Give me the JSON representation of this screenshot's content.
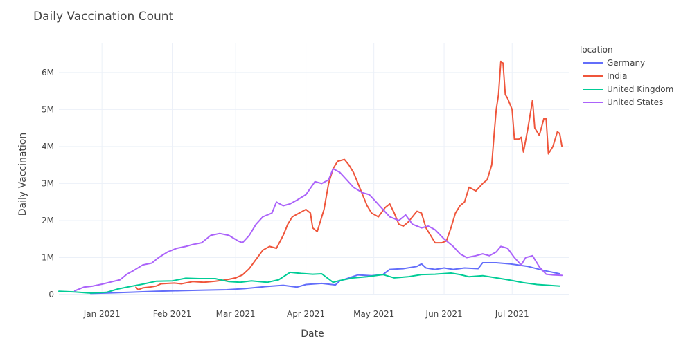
{
  "chart_data": {
    "type": "line",
    "title": "Daily Vaccination Count",
    "xlabel": "Date",
    "ylabel": "Daily Vaccination",
    "legend_title": "location",
    "legend_position": "top-right",
    "grid": true,
    "x_type": "date",
    "xlim": [
      "2020-12-13",
      "2021-07-26"
    ],
    "ylim": [
      0,
      6800000
    ],
    "x_ticks": [
      {
        "date": "2021-01-01",
        "label": "Jan 2021"
      },
      {
        "date": "2021-02-01",
        "label": "Feb 2021"
      },
      {
        "date": "2021-03-01",
        "label": "Mar 2021"
      },
      {
        "date": "2021-04-01",
        "label": "Apr 2021"
      },
      {
        "date": "2021-05-01",
        "label": "May 2021"
      },
      {
        "date": "2021-06-01",
        "label": "Jun 2021"
      },
      {
        "date": "2021-07-01",
        "label": "Jul 2021"
      }
    ],
    "y_ticks": [
      {
        "value": 0,
        "label": "0"
      },
      {
        "value": 1000000,
        "label": "1M"
      },
      {
        "value": 2000000,
        "label": "2M"
      },
      {
        "value": 3000000,
        "label": "3M"
      },
      {
        "value": 4000000,
        "label": "4M"
      },
      {
        "value": 5000000,
        "label": "5M"
      },
      {
        "value": 6000000,
        "label": "6M"
      }
    ],
    "series": [
      {
        "name": "Germany",
        "color": "#636efa",
        "points": [
          [
            "2020-12-27",
            30000
          ],
          [
            "2021-01-05",
            45000
          ],
          [
            "2021-01-15",
            65000
          ],
          [
            "2021-01-25",
            90000
          ],
          [
            "2021-02-05",
            105000
          ],
          [
            "2021-02-15",
            120000
          ],
          [
            "2021-02-25",
            130000
          ],
          [
            "2021-03-05",
            160000
          ],
          [
            "2021-03-15",
            220000
          ],
          [
            "2021-03-22",
            250000
          ],
          [
            "2021-03-28",
            200000
          ],
          [
            "2021-04-01",
            270000
          ],
          [
            "2021-04-08",
            300000
          ],
          [
            "2021-04-14",
            260000
          ],
          [
            "2021-04-16",
            370000
          ],
          [
            "2021-04-20",
            450000
          ],
          [
            "2021-04-24",
            530000
          ],
          [
            "2021-04-30",
            510000
          ],
          [
            "2021-05-05",
            540000
          ],
          [
            "2021-05-08",
            680000
          ],
          [
            "2021-05-14",
            700000
          ],
          [
            "2021-05-20",
            760000
          ],
          [
            "2021-05-22",
            830000
          ],
          [
            "2021-05-24",
            720000
          ],
          [
            "2021-05-28",
            680000
          ],
          [
            "2021-06-01",
            720000
          ],
          [
            "2021-06-05",
            680000
          ],
          [
            "2021-06-10",
            720000
          ],
          [
            "2021-06-16",
            700000
          ],
          [
            "2021-06-18",
            860000
          ],
          [
            "2021-06-24",
            860000
          ],
          [
            "2021-06-30",
            830000
          ],
          [
            "2021-07-08",
            760000
          ],
          [
            "2021-07-15",
            650000
          ],
          [
            "2021-07-22",
            560000
          ]
        ]
      },
      {
        "name": "India",
        "color": "#EF553B",
        "points": [
          [
            "2021-01-16",
            200000
          ],
          [
            "2021-01-17",
            130000
          ],
          [
            "2021-01-19",
            180000
          ],
          [
            "2021-01-22",
            200000
          ],
          [
            "2021-01-25",
            230000
          ],
          [
            "2021-01-27",
            290000
          ],
          [
            "2021-01-30",
            300000
          ],
          [
            "2021-02-02",
            310000
          ],
          [
            "2021-02-05",
            290000
          ],
          [
            "2021-02-10",
            350000
          ],
          [
            "2021-02-15",
            330000
          ],
          [
            "2021-02-20",
            360000
          ],
          [
            "2021-02-25",
            400000
          ],
          [
            "2021-03-01",
            450000
          ],
          [
            "2021-03-04",
            530000
          ],
          [
            "2021-03-07",
            700000
          ],
          [
            "2021-03-10",
            950000
          ],
          [
            "2021-03-13",
            1200000
          ],
          [
            "2021-03-16",
            1300000
          ],
          [
            "2021-03-19",
            1250000
          ],
          [
            "2021-03-22",
            1600000
          ],
          [
            "2021-03-24",
            1900000
          ],
          [
            "2021-03-26",
            2100000
          ],
          [
            "2021-03-29",
            2200000
          ],
          [
            "2021-04-01",
            2300000
          ],
          [
            "2021-04-03",
            2200000
          ],
          [
            "2021-04-04",
            1800000
          ],
          [
            "2021-04-06",
            1700000
          ],
          [
            "2021-04-09",
            2300000
          ],
          [
            "2021-04-11",
            3000000
          ],
          [
            "2021-04-13",
            3400000
          ],
          [
            "2021-04-15",
            3600000
          ],
          [
            "2021-04-18",
            3650000
          ],
          [
            "2021-04-20",
            3500000
          ],
          [
            "2021-04-22",
            3300000
          ],
          [
            "2021-04-24",
            3000000
          ],
          [
            "2021-04-26",
            2700000
          ],
          [
            "2021-04-28",
            2400000
          ],
          [
            "2021-04-30",
            2200000
          ],
          [
            "2021-05-03",
            2100000
          ],
          [
            "2021-05-06",
            2350000
          ],
          [
            "2021-05-08",
            2450000
          ],
          [
            "2021-05-10",
            2200000
          ],
          [
            "2021-05-12",
            1900000
          ],
          [
            "2021-05-14",
            1850000
          ],
          [
            "2021-05-16",
            1950000
          ],
          [
            "2021-05-18",
            2100000
          ],
          [
            "2021-05-20",
            2250000
          ],
          [
            "2021-05-22",
            2200000
          ],
          [
            "2021-05-24",
            1800000
          ],
          [
            "2021-05-26",
            1600000
          ],
          [
            "2021-05-28",
            1400000
          ],
          [
            "2021-05-31",
            1400000
          ],
          [
            "2021-06-02",
            1450000
          ],
          [
            "2021-06-04",
            1800000
          ],
          [
            "2021-06-06",
            2200000
          ],
          [
            "2021-06-08",
            2400000
          ],
          [
            "2021-06-10",
            2500000
          ],
          [
            "2021-06-12",
            2900000
          ],
          [
            "2021-06-15",
            2800000
          ],
          [
            "2021-06-18",
            3000000
          ],
          [
            "2021-06-20",
            3100000
          ],
          [
            "2021-06-22",
            3500000
          ],
          [
            "2021-06-23",
            4300000
          ],
          [
            "2021-06-24",
            5000000
          ],
          [
            "2021-06-25",
            5400000
          ],
          [
            "2021-06-26",
            6300000
          ],
          [
            "2021-06-27",
            6250000
          ],
          [
            "2021-06-28",
            5400000
          ],
          [
            "2021-06-29",
            5300000
          ],
          [
            "2021-07-01",
            5000000
          ],
          [
            "2021-07-02",
            4200000
          ],
          [
            "2021-07-04",
            4200000
          ],
          [
            "2021-07-05",
            4250000
          ],
          [
            "2021-07-06",
            3850000
          ],
          [
            "2021-07-08",
            4500000
          ],
          [
            "2021-07-10",
            5250000
          ],
          [
            "2021-07-11",
            4500000
          ],
          [
            "2021-07-13",
            4300000
          ],
          [
            "2021-07-15",
            4750000
          ],
          [
            "2021-07-16",
            4750000
          ],
          [
            "2021-07-17",
            3800000
          ],
          [
            "2021-07-19",
            4000000
          ],
          [
            "2021-07-21",
            4400000
          ],
          [
            "2021-07-22",
            4350000
          ],
          [
            "2021-07-23",
            4000000
          ]
        ]
      },
      {
        "name": "United Kingdom",
        "color": "#00cc96",
        "points": [
          [
            "2020-12-13",
            90000
          ],
          [
            "2020-12-20",
            70000
          ],
          [
            "2020-12-27",
            40000
          ],
          [
            "2021-01-03",
            60000
          ],
          [
            "2021-01-08",
            150000
          ],
          [
            "2021-01-12",
            200000
          ],
          [
            "2021-01-19",
            280000
          ],
          [
            "2021-01-25",
            360000
          ],
          [
            "2021-02-01",
            370000
          ],
          [
            "2021-02-07",
            440000
          ],
          [
            "2021-02-13",
            430000
          ],
          [
            "2021-02-20",
            430000
          ],
          [
            "2021-02-26",
            350000
          ],
          [
            "2021-03-03",
            330000
          ],
          [
            "2021-03-08",
            370000
          ],
          [
            "2021-03-15",
            330000
          ],
          [
            "2021-03-20",
            400000
          ],
          [
            "2021-03-25",
            600000
          ],
          [
            "2021-03-30",
            570000
          ],
          [
            "2021-04-04",
            550000
          ],
          [
            "2021-04-08",
            560000
          ],
          [
            "2021-04-13",
            330000
          ],
          [
            "2021-04-16",
            380000
          ],
          [
            "2021-04-22",
            450000
          ],
          [
            "2021-04-28",
            480000
          ],
          [
            "2021-05-05",
            540000
          ],
          [
            "2021-05-10",
            450000
          ],
          [
            "2021-05-16",
            480000
          ],
          [
            "2021-05-22",
            540000
          ],
          [
            "2021-05-28",
            550000
          ],
          [
            "2021-06-04",
            580000
          ],
          [
            "2021-06-08",
            540000
          ],
          [
            "2021-06-12",
            480000
          ],
          [
            "2021-06-18",
            510000
          ],
          [
            "2021-06-24",
            450000
          ],
          [
            "2021-06-30",
            390000
          ],
          [
            "2021-07-06",
            320000
          ],
          [
            "2021-07-12",
            270000
          ],
          [
            "2021-07-22",
            230000
          ]
        ]
      },
      {
        "name": "United States",
        "color": "#ab63fa",
        "points": [
          [
            "2020-12-20",
            100000
          ],
          [
            "2020-12-24",
            200000
          ],
          [
            "2020-12-28",
            230000
          ],
          [
            "2021-01-01",
            280000
          ],
          [
            "2021-01-05",
            340000
          ],
          [
            "2021-01-09",
            400000
          ],
          [
            "2021-01-12",
            550000
          ],
          [
            "2021-01-15",
            650000
          ],
          [
            "2021-01-19",
            800000
          ],
          [
            "2021-01-23",
            850000
          ],
          [
            "2021-01-26",
            1000000
          ],
          [
            "2021-01-30",
            1150000
          ],
          [
            "2021-02-03",
            1250000
          ],
          [
            "2021-02-07",
            1300000
          ],
          [
            "2021-02-10",
            1350000
          ],
          [
            "2021-02-14",
            1400000
          ],
          [
            "2021-02-18",
            1600000
          ],
          [
            "2021-02-22",
            1650000
          ],
          [
            "2021-02-26",
            1600000
          ],
          [
            "2021-03-02",
            1450000
          ],
          [
            "2021-03-04",
            1400000
          ],
          [
            "2021-03-07",
            1600000
          ],
          [
            "2021-03-10",
            1900000
          ],
          [
            "2021-03-13",
            2100000
          ],
          [
            "2021-03-17",
            2200000
          ],
          [
            "2021-03-19",
            2500000
          ],
          [
            "2021-03-22",
            2400000
          ],
          [
            "2021-03-25",
            2450000
          ],
          [
            "2021-03-28",
            2550000
          ],
          [
            "2021-04-01",
            2700000
          ],
          [
            "2021-04-05",
            3050000
          ],
          [
            "2021-04-08",
            3000000
          ],
          [
            "2021-04-11",
            3100000
          ],
          [
            "2021-04-13",
            3400000
          ],
          [
            "2021-04-16",
            3300000
          ],
          [
            "2021-04-19",
            3100000
          ],
          [
            "2021-04-22",
            2900000
          ],
          [
            "2021-04-26",
            2750000
          ],
          [
            "2021-04-29",
            2700000
          ],
          [
            "2021-05-02",
            2500000
          ],
          [
            "2021-05-05",
            2300000
          ],
          [
            "2021-05-08",
            2100000
          ],
          [
            "2021-05-12",
            2000000
          ],
          [
            "2021-05-15",
            2150000
          ],
          [
            "2021-05-18",
            1900000
          ],
          [
            "2021-05-22",
            1800000
          ],
          [
            "2021-05-25",
            1850000
          ],
          [
            "2021-05-28",
            1750000
          ],
          [
            "2021-06-01",
            1500000
          ],
          [
            "2021-06-05",
            1300000
          ],
          [
            "2021-06-08",
            1100000
          ],
          [
            "2021-06-11",
            1000000
          ],
          [
            "2021-06-15",
            1050000
          ],
          [
            "2021-06-18",
            1100000
          ],
          [
            "2021-06-21",
            1050000
          ],
          [
            "2021-06-24",
            1150000
          ],
          [
            "2021-06-26",
            1300000
          ],
          [
            "2021-06-29",
            1250000
          ],
          [
            "2021-07-02",
            1000000
          ],
          [
            "2021-07-05",
            800000
          ],
          [
            "2021-07-07",
            1000000
          ],
          [
            "2021-07-10",
            1050000
          ],
          [
            "2021-07-13",
            750000
          ],
          [
            "2021-07-16",
            550000
          ],
          [
            "2021-07-19",
            530000
          ],
          [
            "2021-07-23",
            520000
          ]
        ]
      }
    ]
  }
}
